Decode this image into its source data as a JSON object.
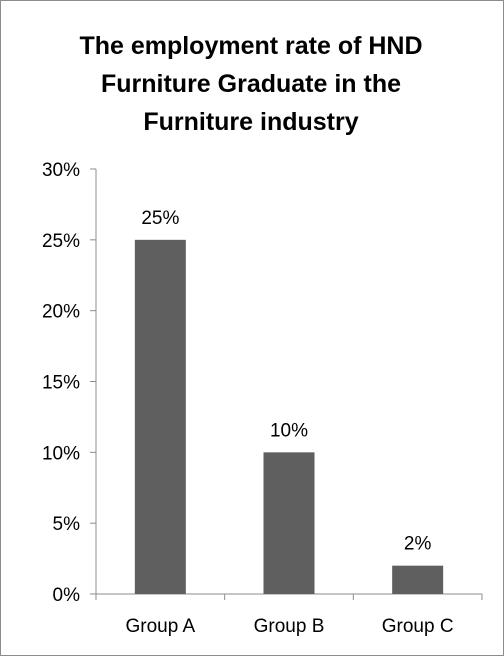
{
  "chart_data": {
    "type": "bar",
    "title_lines": [
      "The employment rate of HND",
      "Furniture Graduate in the",
      "Furniture industry"
    ],
    "categories": [
      "Group A",
      "Group B",
      "Group C"
    ],
    "values": [
      25,
      10,
      2
    ],
    "data_labels": [
      "25%",
      "10%",
      "2%"
    ],
    "y_ticks": [
      "0%",
      "5%",
      "10%",
      "15%",
      "20%",
      "25%",
      "30%"
    ],
    "ylim": [
      0,
      30
    ],
    "y_unit": "%",
    "bar_color": "#5f5f5f",
    "gridlines": false,
    "legend": "none"
  }
}
